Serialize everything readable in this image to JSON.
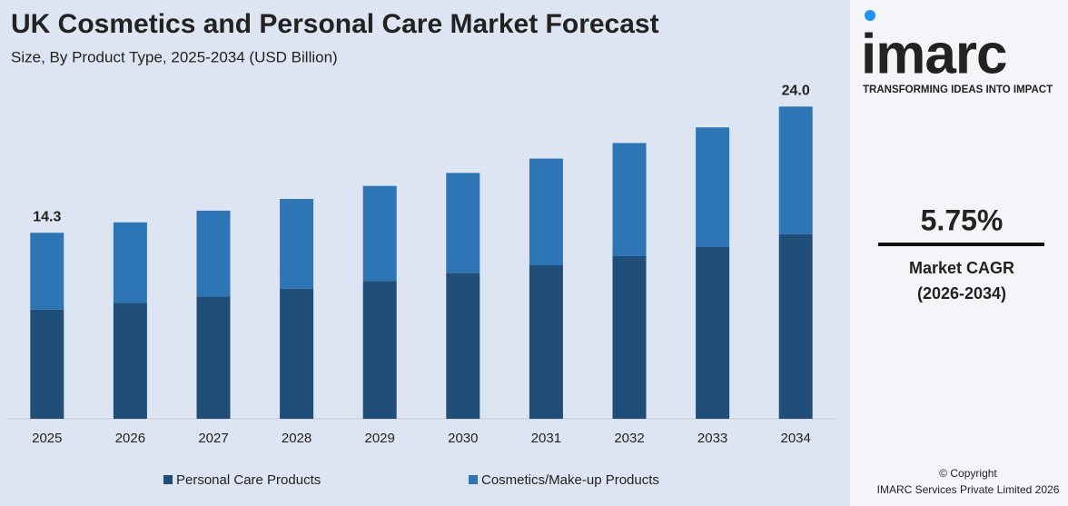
{
  "chart_data": {
    "type": "stacked_bar",
    "title": "UK Cosmetics and Personal Care Market Forecast",
    "subtitle": "Size, By Product Type, 2025-2034 (USD Billion)",
    "categories": [
      "2025",
      "2026",
      "2027",
      "2028",
      "2029",
      "2030",
      "2031",
      "2032",
      "2033",
      "2034"
    ],
    "series": [
      {
        "name": "Personal Care Products",
        "color": "#1f4e79",
        "values": [
          8.4,
          8.9,
          9.4,
          10.0,
          10.6,
          11.2,
          11.8,
          12.5,
          13.2,
          14.2
        ]
      },
      {
        "name": "Cosmetics/Make-up Products",
        "color": "#2e75b6",
        "values": [
          5.9,
          6.2,
          6.6,
          6.9,
          7.3,
          7.7,
          8.2,
          8.7,
          9.2,
          9.8
        ]
      }
    ],
    "totals": [
      14.3,
      null,
      null,
      null,
      null,
      null,
      null,
      null,
      null,
      24.0
    ],
    "total_labels": [
      "14.3",
      null,
      null,
      null,
      null,
      null,
      null,
      null,
      null,
      "24.0"
    ],
    "ylim": [
      0,
      25
    ],
    "legend": "bottom"
  },
  "sidebar": {
    "brand": "imarc",
    "tagline": "TRANSFORMING IDEAS INTO IMPACT",
    "cagr": "5.75%",
    "cagr_label": "Market CAGR",
    "cagr_period": "(2026-2034)",
    "copyright": "© Copyright",
    "company": "IMARC Services Private Limited 2026"
  }
}
